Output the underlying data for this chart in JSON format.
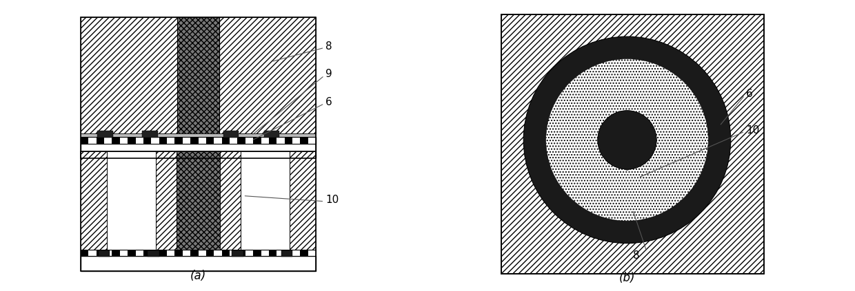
{
  "fig_width": 12.4,
  "fig_height": 4.23,
  "bg_color": "#ffffff",
  "label_fontsize": 11,
  "subfig_label_fontsize": 12,
  "hatch_diag": "////",
  "hatch_dense": "xxxx",
  "hatch_dot": "....",
  "colors": {
    "white": "#ffffff",
    "black": "#000000",
    "dark_metal": "#2a2a2a",
    "medium_metal": "#666666",
    "light_hatch_bg": "#ffffff",
    "check_black": "#000000",
    "gray_annot": "#555555"
  }
}
